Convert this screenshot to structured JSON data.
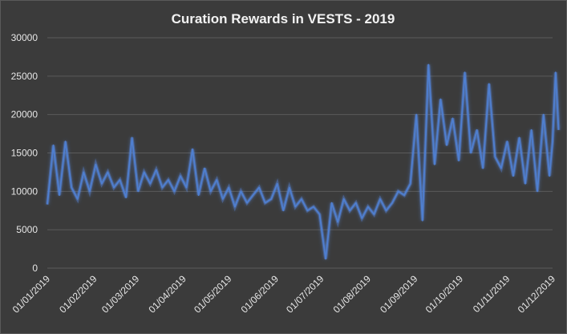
{
  "chart_data": {
    "type": "line",
    "title": "Curation Rewards in VESTS - 2019",
    "xlabel": "",
    "ylabel": "",
    "ylim": [
      0,
      30000
    ],
    "y_ticks": [
      "30000",
      "25000",
      "20000",
      "15000",
      "10000",
      "5000",
      "0"
    ],
    "x_tick_labels": [
      "01/01/2019",
      "01/02/2019",
      "01/03/2019",
      "01/04/2019",
      "01/05/2019",
      "01/06/2019",
      "01/07/2019",
      "01/08/2019",
      "01/09/2019",
      "01/10/2019",
      "01/11/2019",
      "01/12/2019"
    ],
    "grid": true,
    "legend": "none",
    "colors": {
      "line": "#4f7fd0",
      "glow": "#5b8ff0",
      "background": "#3b3b3b",
      "text": "#e6e6e6"
    },
    "series": [
      {
        "x": [
          "01/01/2019",
          "05/01/2019",
          "09/01/2019",
          "13/01/2019",
          "17/01/2019",
          "21/01/2019",
          "25/01/2019",
          "29/01/2019",
          "02/02/2019",
          "06/02/2019",
          "10/02/2019",
          "14/02/2019",
          "18/02/2019",
          "22/02/2019",
          "26/02/2019",
          "02/03/2019",
          "06/03/2019",
          "10/03/2019",
          "14/03/2019",
          "18/03/2019",
          "22/03/2019",
          "26/03/2019",
          "30/03/2019",
          "03/04/2019",
          "07/04/2019",
          "11/04/2019",
          "15/04/2019",
          "19/04/2019",
          "23/04/2019",
          "27/04/2019",
          "01/05/2019",
          "05/05/2019",
          "09/05/2019",
          "13/05/2019",
          "17/05/2019",
          "21/05/2019",
          "25/05/2019",
          "29/05/2019",
          "02/06/2019",
          "06/06/2019",
          "10/06/2019",
          "14/06/2019",
          "18/06/2019",
          "22/06/2019",
          "26/06/2019",
          "30/06/2019",
          "04/07/2019",
          "08/07/2019",
          "12/07/2019",
          "16/07/2019",
          "20/07/2019",
          "24/07/2019",
          "28/07/2019",
          "01/08/2019",
          "05/08/2019",
          "09/08/2019",
          "13/08/2019",
          "17/08/2019",
          "21/08/2019",
          "25/08/2019",
          "29/08/2019",
          "02/09/2019",
          "06/09/2019",
          "10/09/2019",
          "14/09/2019",
          "18/09/2019",
          "22/09/2019",
          "26/09/2019",
          "30/09/2019",
          "04/10/2019",
          "08/10/2019",
          "12/10/2019",
          "16/10/2019",
          "20/10/2019",
          "24/10/2019",
          "28/10/2019",
          "01/11/2019",
          "05/11/2019",
          "09/11/2019",
          "13/11/2019",
          "17/11/2019",
          "21/11/2019",
          "25/11/2019",
          "29/11/2019",
          "01/12/2019",
          "03/12/2019",
          "05/12/2019"
        ],
        "values": [
          8300,
          16000,
          9500,
          16500,
          10500,
          9000,
          12500,
          10000,
          13500,
          11000,
          12500,
          10500,
          11500,
          9200,
          17000,
          10000,
          12500,
          11000,
          12800,
          10500,
          11500,
          10000,
          12000,
          10500,
          15500,
          9500,
          13000,
          10000,
          11500,
          9000,
          10500,
          8000,
          10000,
          8500,
          9500,
          10500,
          8500,
          9000,
          11000,
          7500,
          10500,
          8000,
          9000,
          7500,
          8000,
          7000,
          1200,
          8500,
          6000,
          9000,
          7500,
          8500,
          6500,
          8000,
          7000,
          9000,
          7500,
          8500,
          10000,
          9500,
          11000,
          20000,
          6200,
          26500,
          13500,
          22000,
          16000,
          19500,
          14000,
          25500,
          15000,
          18000,
          13000,
          24000,
          14500,
          13000,
          16500,
          12000,
          17000,
          11000,
          18000,
          10000,
          20000,
          12000,
          16500,
          25500,
          18000
        ]
      }
    ]
  }
}
